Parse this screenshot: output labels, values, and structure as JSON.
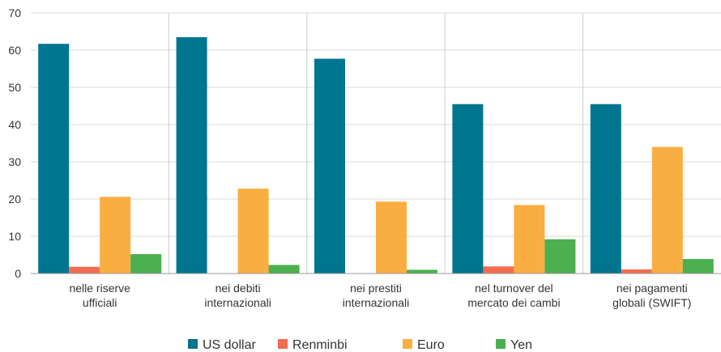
{
  "chart_data": {
    "type": "bar",
    "title": "",
    "xlabel": "",
    "ylabel": "",
    "ylim": [
      0,
      70
    ],
    "yticks": [
      "0",
      "10",
      "20",
      "30",
      "40",
      "50",
      "60",
      "70"
    ],
    "grid": true,
    "legend_position": "bottom",
    "categories": [
      [
        "nelle riserve",
        "ufficiali"
      ],
      [
        "nei debiti",
        "internazionali"
      ],
      [
        "nei prestiti",
        "internazionali"
      ],
      [
        "nel turnover del",
        "mercato dei cambi"
      ],
      [
        "nei pagamenti",
        "globali (SWIFT)"
      ]
    ],
    "series": [
      {
        "name": "US dollar",
        "color": "#00758f",
        "values": [
          61.7,
          63.5,
          57.7,
          45.5,
          45.5
        ]
      },
      {
        "name": "Renminbi",
        "color": "#f26c4f",
        "values": [
          1.8,
          0,
          0,
          1.9,
          1.1
        ]
      },
      {
        "name": "Euro",
        "color": "#f9ae41",
        "values": [
          20.6,
          22.8,
          19.3,
          18.4,
          34.0
        ]
      },
      {
        "name": "Yen",
        "color": "#4caf50",
        "values": [
          5.2,
          2.3,
          1.0,
          9.2,
          3.9
        ]
      }
    ]
  }
}
